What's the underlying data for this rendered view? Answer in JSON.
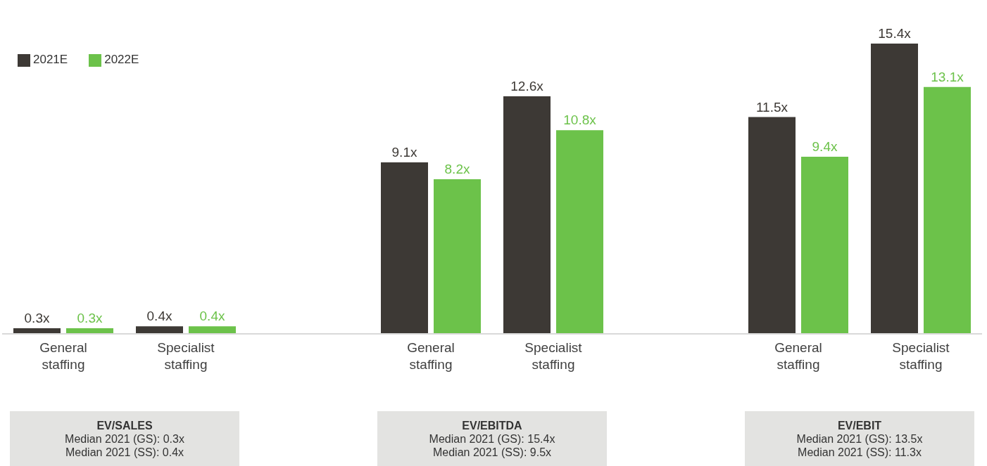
{
  "chart_data": {
    "type": "bar",
    "categories": [
      "General staffing",
      "Specialist staffing",
      null,
      "General staffing",
      "Specialist staffing",
      null,
      "General staffing",
      "Specialist staffing"
    ],
    "series": [
      {
        "name": "2021E",
        "color": "#3d3935",
        "values": [
          0.3,
          0.4,
          null,
          9.1,
          12.6,
          null,
          11.5,
          15.4
        ],
        "value_labels": [
          "0.3x",
          "0.4x",
          null,
          "9.1x",
          "12.6x",
          null,
          "11.5x",
          "15.4x"
        ]
      },
      {
        "name": "2022E",
        "color": "#6cc24a",
        "values": [
          0.3,
          0.4,
          null,
          8.2,
          10.8,
          null,
          9.4,
          13.1
        ],
        "value_labels": [
          "0.3x",
          "0.4x",
          null,
          "8.2x",
          "10.8x",
          null,
          "9.4x",
          "13.1x"
        ]
      }
    ],
    "legend": "top left",
    "grid": false,
    "annotations": [
      "EV/SALES",
      "Median 2021 (GS): 0.3x",
      "Median 2021 (SS): 0.4x",
      "EV/EBITDA",
      "Median 2021 (GS): 15.4x",
      "Median 2021 (SS): 9.5x",
      "EV/EBIT",
      "Median 2021 (GS): 13.5x",
      "Median 2021 (SS): 11.3x"
    ]
  }
}
